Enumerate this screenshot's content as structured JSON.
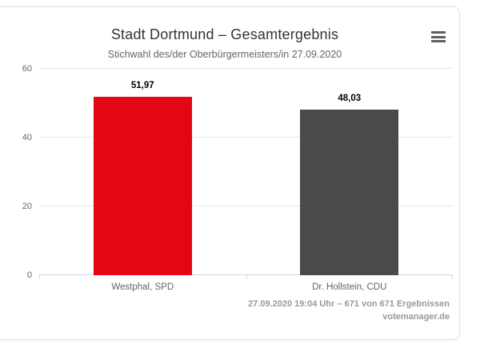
{
  "chart_data": {
    "type": "bar",
    "title": "Stadt Dortmund – Gesamtergebnis",
    "subtitle": "Stichwahl des/der Oberbürgermeisters/in 27.09.2020",
    "categories": [
      "Westphal, SPD",
      "Dr. Hollstein, CDU"
    ],
    "values": [
      51.97,
      48.03
    ],
    "value_labels": [
      "51,97",
      "48,03"
    ],
    "bar_colors": [
      "#e30613",
      "#4a4a4a"
    ],
    "xlabel": "",
    "ylabel": "",
    "ylim": [
      0,
      60
    ],
    "yticks": [
      0,
      20,
      40,
      60
    ],
    "grid": true,
    "legend": "none",
    "axis_color": "#ccd6eb",
    "grid_color": "#e6e6e6"
  },
  "menu": {
    "icon": "hamburger-icon",
    "tooltip": "Chart context menu"
  },
  "footer": {
    "status": "27.09.2020 19:04 Uhr – 671 von 671 Ergebnissen",
    "credits": "votemanager.de"
  }
}
